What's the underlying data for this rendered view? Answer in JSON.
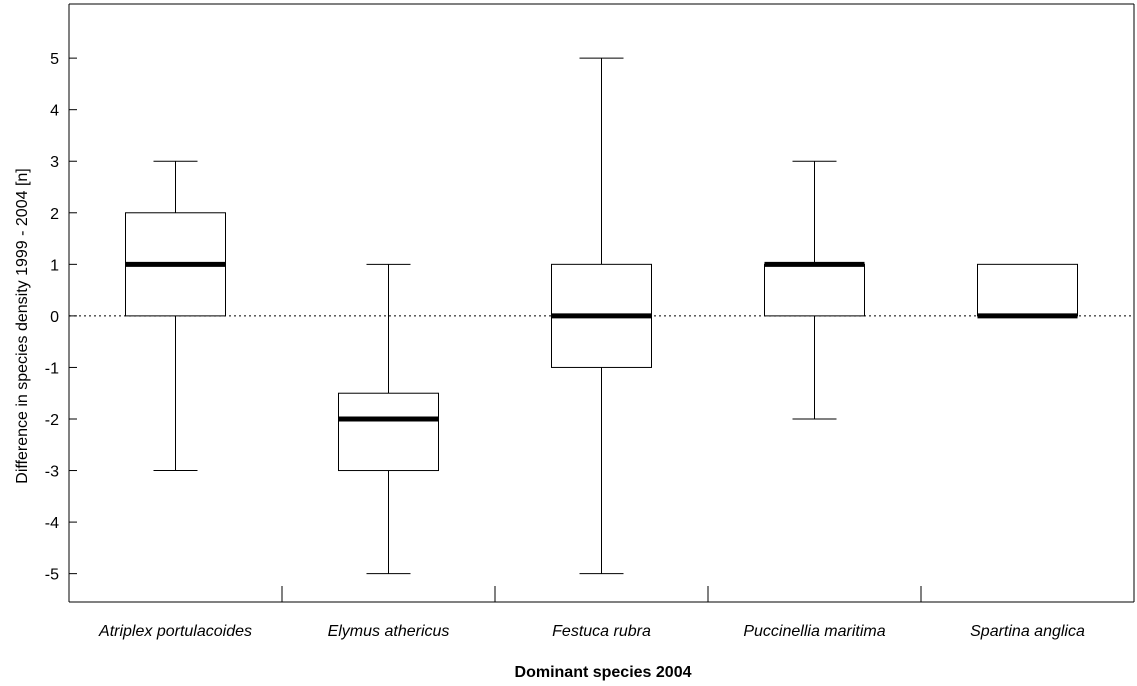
{
  "chart_data": {
    "type": "box",
    "title": "",
    "xlabel": "Dominant species 2004",
    "ylabel": "Difference in species density 1999 - 2004 [n]",
    "ylim": [
      -5.55,
      6.05
    ],
    "yticks": [
      5,
      4,
      3,
      2,
      1,
      0,
      -1,
      -2,
      -3,
      -4,
      -5
    ],
    "ytick_labels": [
      "5",
      "4",
      "3",
      "2",
      "1",
      "0",
      "-1",
      "-2",
      "-3",
      "-4",
      "-5"
    ],
    "reference_line": 0,
    "categories": [
      "Atriplex portulacoides",
      "Elymus athericus",
      "Festuca rubra",
      "Puccinellia maritima",
      "Spartina anglica"
    ],
    "boxes": [
      {
        "category": "Atriplex portulacoides",
        "min": -3,
        "q1": 0,
        "median": 1,
        "q3": 2,
        "max": 3
      },
      {
        "category": "Elymus athericus",
        "min": -5,
        "q1": -3,
        "median": -2,
        "q3": -1.5,
        "max": 1
      },
      {
        "category": "Festuca rubra",
        "min": -5,
        "q1": -1,
        "median": 0,
        "q3": 1,
        "max": 5
      },
      {
        "category": "Puccinellia maritima",
        "min": -2,
        "q1": 0,
        "median": 1,
        "q3": 1,
        "max": 3
      },
      {
        "category": "Spartina anglica",
        "min": 0,
        "q1": 0,
        "median": 0,
        "q3": 1,
        "max": 1
      }
    ],
    "grid": false,
    "legend": "none"
  }
}
